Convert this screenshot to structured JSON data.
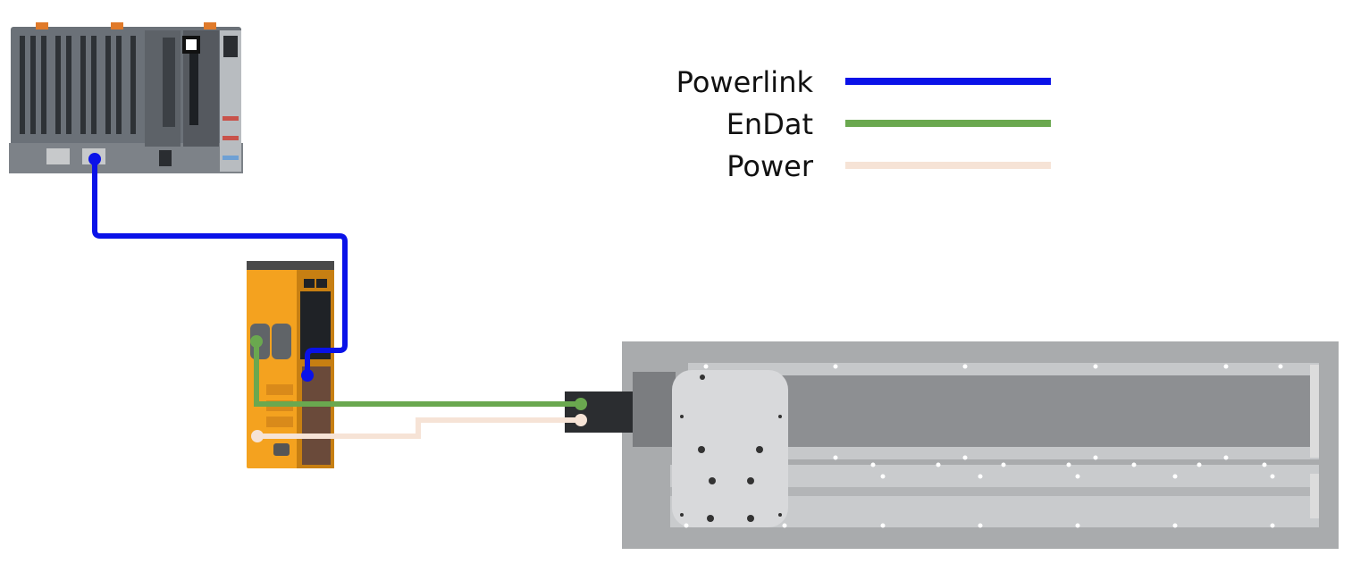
{
  "legend": {
    "items": [
      {
        "label": "Powerlink",
        "color": "#0a12e8"
      },
      {
        "label": "EnDat",
        "color": "#6aa84f"
      },
      {
        "label": "Power",
        "color": "#f6e3d6"
      }
    ]
  },
  "devices": {
    "plc": {
      "icon": "plc-controller-icon"
    },
    "drive": {
      "icon": "servo-drive-icon"
    },
    "stage": {
      "icon": "linear-motor-stage-icon"
    }
  },
  "colors": {
    "powerlink": "#0a12e8",
    "endat": "#6aa84f",
    "power": "#f6e3d6",
    "drive_orange": "#f4a21f",
    "plc_gray": "#6b7178",
    "stage_gray": "#a9abad"
  }
}
